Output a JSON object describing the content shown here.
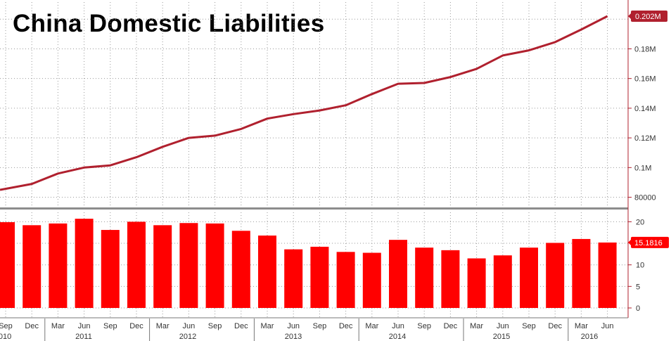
{
  "chart_data": [
    {
      "type": "line",
      "title": "China Domestic Liabilities",
      "color": "#b0202e",
      "x": [
        "2010-07",
        "2010-10",
        "2011-01",
        "2011-04",
        "2011-07",
        "2011-10",
        "2012-01",
        "2012-04",
        "2012-07",
        "2012-10",
        "2013-01",
        "2013-04",
        "2013-07",
        "2013-10",
        "2014-01",
        "2014-04",
        "2014-07",
        "2014-10",
        "2015-01",
        "2015-04",
        "2015-07",
        "2015-10",
        "2016-01",
        "2016-04"
      ],
      "values": [
        85000,
        89000,
        96000,
        100000,
        101500,
        107000,
        114000,
        120000,
        121500,
        126000,
        133000,
        136000,
        138500,
        142000,
        149500,
        156500,
        157000,
        161000,
        166500,
        175500,
        179000,
        184500,
        193000,
        202000
      ],
      "ylim": [
        75000,
        210000
      ],
      "y_ticks": [
        {
          "value": 80000,
          "label": "80000"
        },
        {
          "value": 100000,
          "label": "0.1M"
        },
        {
          "value": 120000,
          "label": "0.12M"
        },
        {
          "value": 140000,
          "label": "0.14M"
        },
        {
          "value": 160000,
          "label": "0.16M"
        },
        {
          "value": 180000,
          "label": "0.18M"
        }
      ],
      "last_value_label": "0.202M",
      "grid": true
    },
    {
      "type": "bar",
      "color": "#ff0000",
      "x": [
        "2010-07",
        "2010-10",
        "2011-01",
        "2011-04",
        "2011-07",
        "2011-10",
        "2012-01",
        "2012-04",
        "2012-07",
        "2012-10",
        "2013-01",
        "2013-04",
        "2013-07",
        "2013-10",
        "2014-01",
        "2014-04",
        "2014-07",
        "2014-10",
        "2015-01",
        "2015-04",
        "2015-07",
        "2015-10",
        "2016-01",
        "2016-04"
      ],
      "values": [
        19.9,
        19.2,
        19.6,
        20.7,
        18.1,
        20.0,
        19.2,
        19.7,
        19.6,
        17.9,
        16.8,
        13.6,
        14.2,
        13.0,
        12.8,
        15.8,
        14.0,
        13.4,
        11.5,
        12.2,
        14.0,
        15.1,
        16.0,
        15.1816
      ],
      "ylim": [
        -1,
        22
      ],
      "y_ticks": [
        {
          "value": 0,
          "label": "0"
        },
        {
          "value": 5,
          "label": "5"
        },
        {
          "value": 10,
          "label": "10"
        },
        {
          "value": 20,
          "label": "20"
        }
      ],
      "last_value_label": "15.1816",
      "grid": true
    }
  ],
  "x_axis": {
    "month_labels": [
      "Sep",
      "Dec",
      "Mar",
      "Jun",
      "Sep",
      "Dec",
      "Mar",
      "Jun",
      "Sep",
      "Dec",
      "Mar",
      "Jun",
      "Sep",
      "Dec",
      "Mar",
      "Jun",
      "Sep",
      "Dec",
      "Mar",
      "Jun",
      "Sep",
      "Dec",
      "Mar",
      "Jun"
    ],
    "year_labels": [
      "2010",
      "2011",
      "2012",
      "2013",
      "2014",
      "2015",
      "2016"
    ]
  }
}
